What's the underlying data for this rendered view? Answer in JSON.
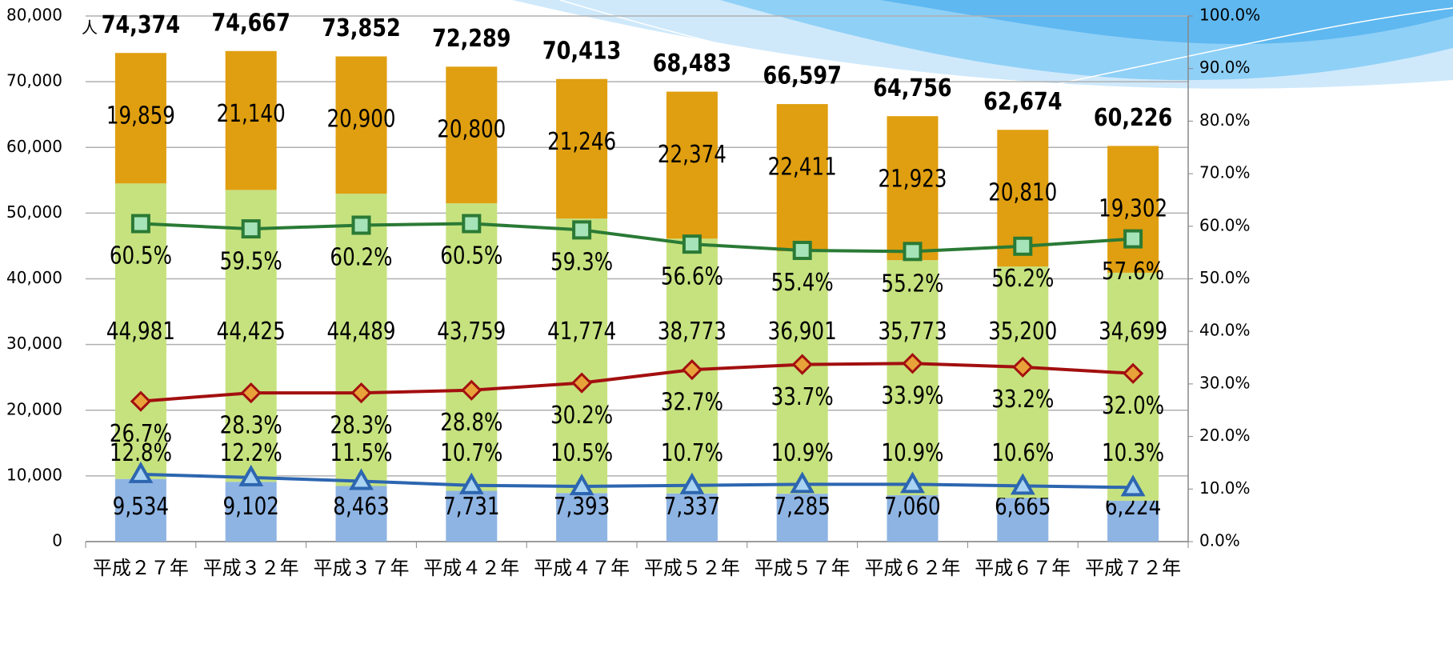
{
  "chart_data": {
    "type": "bar",
    "categories": [
      "平成２７年",
      "平成３２年",
      "平成３７年",
      "平成４２年",
      "平成４７年",
      "平成５２年",
      "平成５７年",
      "平成６２年",
      "平成６７年",
      "平成７２年"
    ],
    "series": [
      {
        "type": "bar",
        "color": "#8eb4e3",
        "values": [
          9534,
          9102,
          8463,
          7731,
          7393,
          7337,
          7285,
          7060,
          6665,
          6224
        ],
        "value_labels": [
          "9,534",
          "9,102",
          "8,463",
          "7,731",
          "7,393",
          "7,337",
          "7,285",
          "7,060",
          "6,665",
          "6,224"
        ]
      },
      {
        "type": "bar",
        "color": "#c6e27e",
        "values": [
          44981,
          44425,
          44489,
          43759,
          41774,
          38773,
          36901,
          35773,
          35200,
          34699
        ],
        "value_labels": [
          "44,981",
          "44,425",
          "44,489",
          "43,759",
          "41,774",
          "38,773",
          "36,901",
          "35,773",
          "35,200",
          "34,699"
        ]
      },
      {
        "type": "bar",
        "color": "#e09f10",
        "values": [
          19859,
          21140,
          20900,
          20800,
          21246,
          22374,
          22411,
          21923,
          20810,
          19302
        ],
        "value_labels": [
          "19,859",
          "21,140",
          "20,900",
          "20,800",
          "21,246",
          "22,374",
          "22,411",
          "21,923",
          "20,810",
          "19,302"
        ]
      },
      {
        "type": "line",
        "axis": "y2",
        "color": "#2a7a35",
        "marker": "square",
        "marker_fill": "#a6e3b8",
        "values": [
          60.5,
          59.5,
          60.2,
          60.5,
          59.3,
          56.6,
          55.4,
          55.2,
          56.2,
          57.6
        ],
        "value_labels": [
          "60.5%",
          "59.5%",
          "60.2%",
          "60.5%",
          "59.3%",
          "56.6%",
          "55.4%",
          "55.2%",
          "56.2%",
          "57.6%"
        ]
      },
      {
        "type": "line",
        "axis": "y2",
        "color": "#a30f0f",
        "marker": "diamond",
        "marker_fill": "#e8a23a",
        "values": [
          26.7,
          28.3,
          28.3,
          28.8,
          30.2,
          32.7,
          33.7,
          33.9,
          33.2,
          32.0
        ],
        "value_labels": [
          "26.7%",
          "28.3%",
          "28.3%",
          "28.8%",
          "30.2%",
          "32.7%",
          "33.7%",
          "33.9%",
          "33.2%",
          "32.0%"
        ]
      },
      {
        "type": "line",
        "axis": "y2",
        "color": "#2d66b0",
        "marker": "triangle",
        "marker_fill": "#a9d3f2",
        "values": [
          12.8,
          12.2,
          11.5,
          10.7,
          10.5,
          10.7,
          10.9,
          10.9,
          10.6,
          10.3
        ],
        "value_labels": [
          "12.8%",
          "12.2%",
          "11.5%",
          "10.7%",
          "10.5%",
          "10.7%",
          "10.9%",
          "10.9%",
          "10.6%",
          "10.3%"
        ]
      }
    ],
    "totals": {
      "values": [
        74374,
        74667,
        73852,
        72289,
        70413,
        68483,
        66597,
        64756,
        62674,
        60226
      ],
      "value_labels": [
        "74,374",
        "74,667",
        "73,852",
        "72,289",
        "70,413",
        "68,483",
        "66,597",
        "64,756",
        "62,674",
        "60,226"
      ]
    },
    "y_unit": "人",
    "ylim": [
      0,
      80000
    ],
    "yticks": [
      0,
      {
        "value": 10000,
        "label": "10,000"
      },
      {
        "value": 20000,
        "label": "20,000"
      },
      {
        "value": 30000,
        "label": "30,000"
      },
      {
        "value": 40000,
        "label": "40,000"
      },
      {
        "value": 50000,
        "label": "50,000"
      },
      {
        "value": 60000,
        "label": "60,000"
      },
      {
        "value": 70000,
        "label": "70,000"
      },
      {
        "value": 80000,
        "label": "80,000"
      }
    ],
    "y2lim": [
      0,
      100
    ],
    "y2ticks": [
      {
        "value": 0,
        "label": "0.0%"
      },
      {
        "value": 10,
        "label": "10.0%"
      },
      {
        "value": 20,
        "label": "20.0%"
      },
      {
        "value": 30,
        "label": "30.0%"
      },
      {
        "value": 40,
        "label": "40.0%"
      },
      {
        "value": 50,
        "label": "50.0%"
      },
      {
        "value": 60,
        "label": "60.0%"
      },
      {
        "value": 70,
        "label": "70.0%"
      },
      {
        "value": 80,
        "label": "80.0%"
      },
      {
        "value": 90,
        "label": "90.0%"
      },
      {
        "value": 100,
        "label": "100.0%"
      }
    ],
    "grid": true
  }
}
